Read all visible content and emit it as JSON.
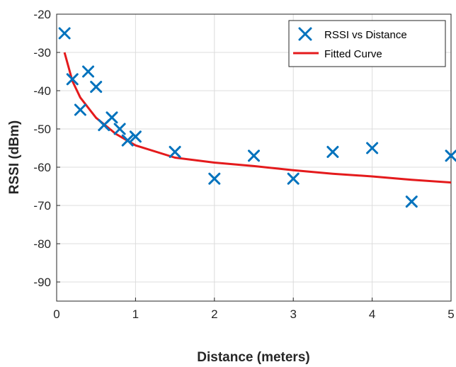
{
  "chart_data": {
    "type": "scatter",
    "title": "",
    "xlabel": "Distance (meters)",
    "ylabel": "RSSI (dBm)",
    "xlim": [
      0,
      5
    ],
    "ylim": [
      -95,
      -20
    ],
    "x_ticks": [
      0,
      1,
      2,
      3,
      4,
      5
    ],
    "y_ticks": [
      -90,
      -80,
      -70,
      -60,
      -50,
      -40,
      -30,
      -20
    ],
    "x_tick_labels": [
      "0",
      "1",
      "2",
      "3",
      "4",
      "5"
    ],
    "y_tick_labels": [
      "-90",
      "-80",
      "-70",
      "-60",
      "-50",
      "-40",
      "-30",
      "-20"
    ],
    "grid": true,
    "legend_position": "top-right",
    "series": [
      {
        "name": "RSSI vs Distance",
        "kind": "scatter",
        "marker": "x",
        "color": "#0072BD",
        "x": [
          0.1,
          0.2,
          0.3,
          0.4,
          0.5,
          0.6,
          0.7,
          0.8,
          0.9,
          1.0,
          1.5,
          2.0,
          2.5,
          3.0,
          3.5,
          4.0,
          4.5,
          5.0
        ],
        "y": [
          -25,
          -37,
          -45,
          -35,
          -39,
          -49,
          -47,
          -50,
          -53,
          -52,
          -56,
          -63,
          -57,
          -63,
          -56,
          -55,
          -69,
          -57
        ]
      },
      {
        "name": "Fitted Curve",
        "kind": "line",
        "color": "#E41A1C",
        "x": [
          0.1,
          0.2,
          0.3,
          0.5,
          0.75,
          1.0,
          1.5,
          2.0,
          2.5,
          3.0,
          3.5,
          4.0,
          4.5,
          5.0
        ],
        "y": [
          -30,
          -37.5,
          -41.8,
          -47.1,
          -51.3,
          -54.3,
          -57.5,
          -58.8,
          -59.7,
          -60.8,
          -61.7,
          -62.4,
          -63.3,
          -64.0
        ]
      }
    ]
  }
}
